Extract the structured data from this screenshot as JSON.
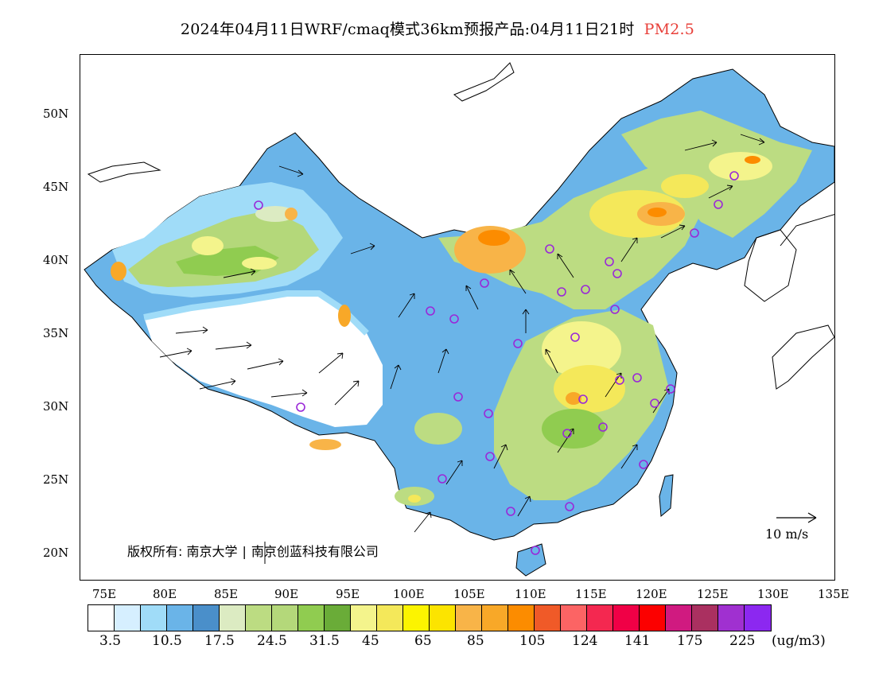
{
  "title": {
    "main": "2024年04月11日WRF/cmaq模式36km预报产品:04月11日21时",
    "pollutant": "PM2.5"
  },
  "axes": {
    "lat_labels": [
      "50N",
      "45N",
      "40N",
      "35N",
      "30N",
      "25N",
      "20N"
    ],
    "lon_labels": [
      "75E",
      "80E",
      "85E",
      "90E",
      "95E",
      "100E",
      "105E",
      "110E",
      "115E",
      "120E",
      "125E",
      "130E",
      "135E"
    ]
  },
  "copyright": {
    "left": "版权所有: 南京大学",
    "divider": "|",
    "right": "南京创蓝科技有限公司"
  },
  "wind_reference": "10 m/s",
  "legend": {
    "colors": [
      "#ffffff",
      "#d6efff",
      "#a0dcf8",
      "#6ab4e8",
      "#4a8fca",
      "#dcebc2",
      "#bcdc82",
      "#b4d87a",
      "#90cc50",
      "#6aac38",
      "#f4f48c",
      "#f4e85a",
      "#fcf400",
      "#fce400",
      "#f8b448",
      "#f8a828",
      "#fc8c00",
      "#f05a28",
      "#fc6464",
      "#f42850",
      "#f00046",
      "#fc0000",
      "#d01a80",
      "#aa3060",
      "#a030d0",
      "#8c28f0"
    ],
    "levels": [
      "3.5",
      "10.5",
      "17.5",
      "24.5",
      "31.5",
      "45",
      "65",
      "85",
      "105",
      "124",
      "141",
      "175",
      "225"
    ],
    "unit": "(ug/m3)"
  }
}
